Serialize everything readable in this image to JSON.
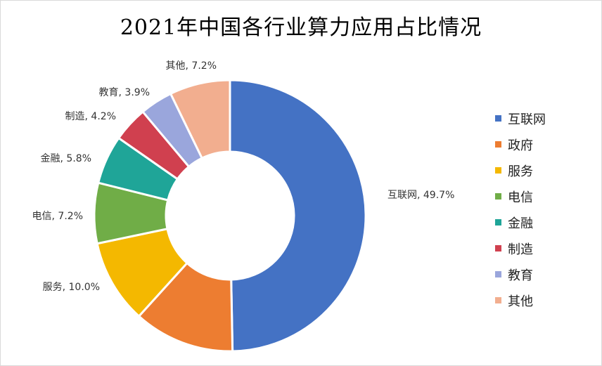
{
  "chart_data": {
    "type": "pie",
    "title": "2021年中国各行业算力应用占比情况",
    "slices": [
      {
        "name": "互联网",
        "value": 49.7,
        "label": "互联网, 49.7%",
        "color": "#4472c4"
      },
      {
        "name": "政府",
        "value": 12.0,
        "label": "",
        "color": "#ed7d31"
      },
      {
        "name": "服务",
        "value": 10.0,
        "label": "服务, 10.0%",
        "color": "#f4b800"
      },
      {
        "name": "电信",
        "value": 7.2,
        "label": "电信, 7.2%",
        "color": "#70ad47"
      },
      {
        "name": "金融",
        "value": 5.8,
        "label": "金融, 5.8%",
        "color": "#1fa598"
      },
      {
        "name": "制造",
        "value": 4.2,
        "label": "制造, 4.2%",
        "color": "#d0404f"
      },
      {
        "name": "教育",
        "value": 3.9,
        "label": "教育, 3.9%",
        "color": "#9aa6dc"
      },
      {
        "name": "其他",
        "value": 7.2,
        "label": "其他, 7.2%",
        "color": "#f2ae8f"
      }
    ],
    "legend_position": "right"
  }
}
